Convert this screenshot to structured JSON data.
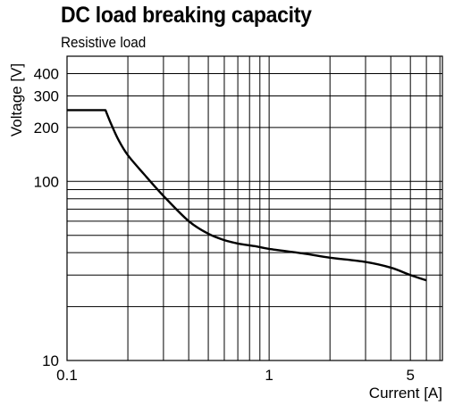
{
  "chart_data": {
    "type": "line",
    "title": "DC load breaking capacity",
    "subtitle": "Resistive load",
    "xlabel": "Current [A]",
    "ylabel": "Voltage [V]",
    "x_scale": "log",
    "y_scale": "log",
    "xlim": [
      0.1,
      7.2
    ],
    "ylim": [
      10,
      500
    ],
    "grid": true,
    "x_ticks": [
      {
        "value": 0.1,
        "label": "0.1"
      },
      {
        "value": 1,
        "label": "1"
      },
      {
        "value": 5,
        "label": "5"
      }
    ],
    "y_ticks": [
      {
        "value": 10,
        "label": "10"
      },
      {
        "value": 100,
        "label": "100"
      },
      {
        "value": 200,
        "label": "200"
      },
      {
        "value": 300,
        "label": "300"
      },
      {
        "value": 400,
        "label": "400"
      }
    ],
    "x_grid": [
      0.1,
      0.2,
      0.3,
      0.4,
      0.5,
      0.6,
      0.7,
      0.8,
      0.9,
      1,
      2,
      3,
      4,
      5,
      6,
      7
    ],
    "y_grid": [
      10,
      20,
      30,
      40,
      50,
      60,
      70,
      80,
      90,
      100,
      200,
      300,
      400,
      500
    ],
    "series": [
      {
        "points": [
          [
            0.1,
            250
          ],
          [
            0.155,
            250
          ],
          [
            0.165,
            210
          ],
          [
            0.18,
            170
          ],
          [
            0.2,
            140
          ],
          [
            0.24,
            110
          ],
          [
            0.3,
            83
          ],
          [
            0.4,
            60
          ],
          [
            0.5,
            51
          ],
          [
            0.6,
            47
          ],
          [
            0.7,
            45
          ],
          [
            0.85,
            43.5
          ],
          [
            1.0,
            42
          ],
          [
            1.5,
            39.5
          ],
          [
            2.0,
            37.5
          ],
          [
            3.0,
            35.5
          ],
          [
            4.0,
            33
          ],
          [
            5.0,
            30
          ],
          [
            6.0,
            28
          ]
        ]
      }
    ]
  }
}
